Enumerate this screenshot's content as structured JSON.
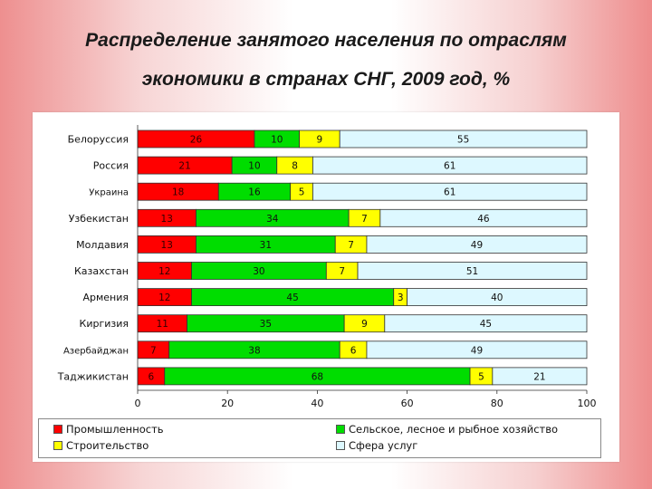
{
  "title_line1": "Распределение занятого населения по отраслям",
  "title_line2": "экономики в странах СНГ, 2009 год, %",
  "chart_data": {
    "type": "bar",
    "orientation": "horizontal",
    "stacked": true,
    "categories": [
      "Белоруссия",
      "Россия",
      "Украина",
      "Узбекистан",
      "Молдавия",
      "Казахстан",
      "Армения",
      "Киргизия",
      "Азербайджан",
      "Таджикистан"
    ],
    "series": [
      {
        "name": "Промышленность",
        "color": "#ff0000",
        "values": [
          26,
          21,
          18,
          13,
          13,
          12,
          12,
          11,
          7,
          6
        ]
      },
      {
        "name": "Сельское, лесное и рыбное хозяйство",
        "color": "#00dd00",
        "values": [
          10,
          10,
          16,
          34,
          31,
          30,
          45,
          35,
          38,
          68
        ]
      },
      {
        "name": "Строительство",
        "color": "#ffff00",
        "values": [
          9,
          8,
          5,
          7,
          7,
          7,
          3,
          9,
          6,
          5
        ]
      },
      {
        "name": "Сфера услуг",
        "color": "#ddf8ff",
        "values": [
          55,
          61,
          61,
          46,
          49,
          51,
          40,
          45,
          49,
          21
        ]
      }
    ],
    "x_ticks": [
      "0",
      "20",
      "40",
      "60",
      "80",
      "100"
    ],
    "xlim": [
      0,
      100
    ],
    "legend_position": "bottom",
    "grid": false
  }
}
